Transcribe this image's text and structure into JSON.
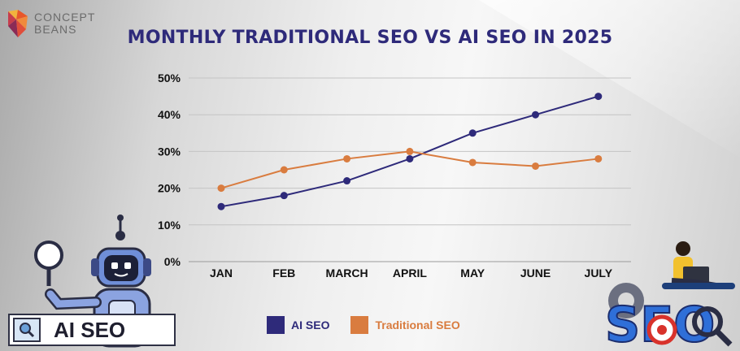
{
  "logo": {
    "line1": "CONCEPT",
    "line2": "BEANS"
  },
  "title": "MONTHLY TRADITIONAL SEO VS AI SEO IN 2025",
  "badge_text": "AI SEO",
  "seo_art_text": "SEO",
  "chart_data": {
    "type": "line",
    "title": "MONTHLY TRADITIONAL SEO VS AI SEO IN 2025",
    "categories": [
      "JAN",
      "FEB",
      "MARCH",
      "APRIL",
      "MAY",
      "JUNE",
      "JULY"
    ],
    "yticks": [
      "0%",
      "10%",
      "20%",
      "30%",
      "40%",
      "50%"
    ],
    "ylim": [
      0,
      50
    ],
    "grid": true,
    "legend_position": "bottom",
    "series": [
      {
        "name": "AI SEO",
        "color": "#2e2a7a",
        "values": [
          15,
          18,
          22,
          28,
          35,
          40,
          45
        ]
      },
      {
        "name": "Traditional SEO",
        "color": "#d97c3f",
        "values": [
          20,
          25,
          28,
          30,
          27,
          26,
          28
        ]
      }
    ]
  }
}
